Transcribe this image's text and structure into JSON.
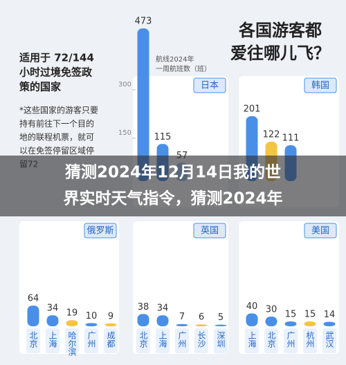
{
  "heading": [
    "各国游客都",
    "爱往哪儿飞？"
  ],
  "intro": {
    "title": [
      "适用于 72/144",
      "小时过境免签政",
      "策的国家"
    ],
    "note": [
      "*这些国家的游客只要",
      "持有前往下一个目的",
      "地的联程机票，就可",
      "以在免签停留区域停",
      "留72"
    ]
  },
  "banner": [
    "猜测2024年12月14日我的世",
    "界实时天气指令，猜测2024年"
  ],
  "chart_data": [
    {
      "type": "bar",
      "country": "日本",
      "annotation": [
        "航线2024年",
        "一周航班数（班）"
      ],
      "categories": [
        null,
        null,
        null
      ],
      "values": [
        473,
        115,
        57
      ],
      "colors": [
        "#4a8fe7",
        "#4a8fe7",
        "#9cc3f2"
      ],
      "ylim": [
        0,
        500
      ],
      "yticks": [
        150,
        300
      ]
    },
    {
      "type": "bar",
      "country": "韩国",
      "categories": [
        null,
        null,
        null
      ],
      "values": [
        201,
        122,
        111
      ],
      "colors": [
        "#4a8fe7",
        "#f4c542",
        "#4a8fe7"
      ],
      "ylim": [
        0,
        500
      ]
    },
    {
      "type": "bar",
      "country": "俄罗斯",
      "categories": [
        "北京",
        "上海",
        "哈尔滨",
        "广州",
        "成都"
      ],
      "values": [
        64,
        34,
        19,
        10,
        9
      ],
      "colors": [
        "#4a8fe7",
        "#4a8fe7",
        "#f4c542",
        "#4a8fe7",
        "#f4c542"
      ],
      "ylim": [
        0,
        500
      ]
    },
    {
      "type": "bar",
      "country": "英国",
      "categories": [
        "北京",
        "上海",
        "广州",
        "长沙",
        "深圳"
      ],
      "values": [
        38,
        34,
        7,
        6,
        5
      ],
      "colors": [
        "#4a8fe7",
        "#4a8fe7",
        "#4a8fe7",
        "#f4c542",
        "#4a8fe7"
      ],
      "ylim": [
        0,
        500
      ]
    },
    {
      "type": "bar",
      "country": "美国",
      "categories": [
        "上海",
        "北京",
        "广州",
        "杭州",
        "武汉"
      ],
      "values": [
        40,
        30,
        15,
        15,
        14
      ],
      "colors": [
        "#4a8fe7",
        "#4a8fe7",
        "#4a8fe7",
        "#f4c542",
        "#4a8fe7"
      ],
      "ylim": [
        0,
        500
      ]
    }
  ]
}
